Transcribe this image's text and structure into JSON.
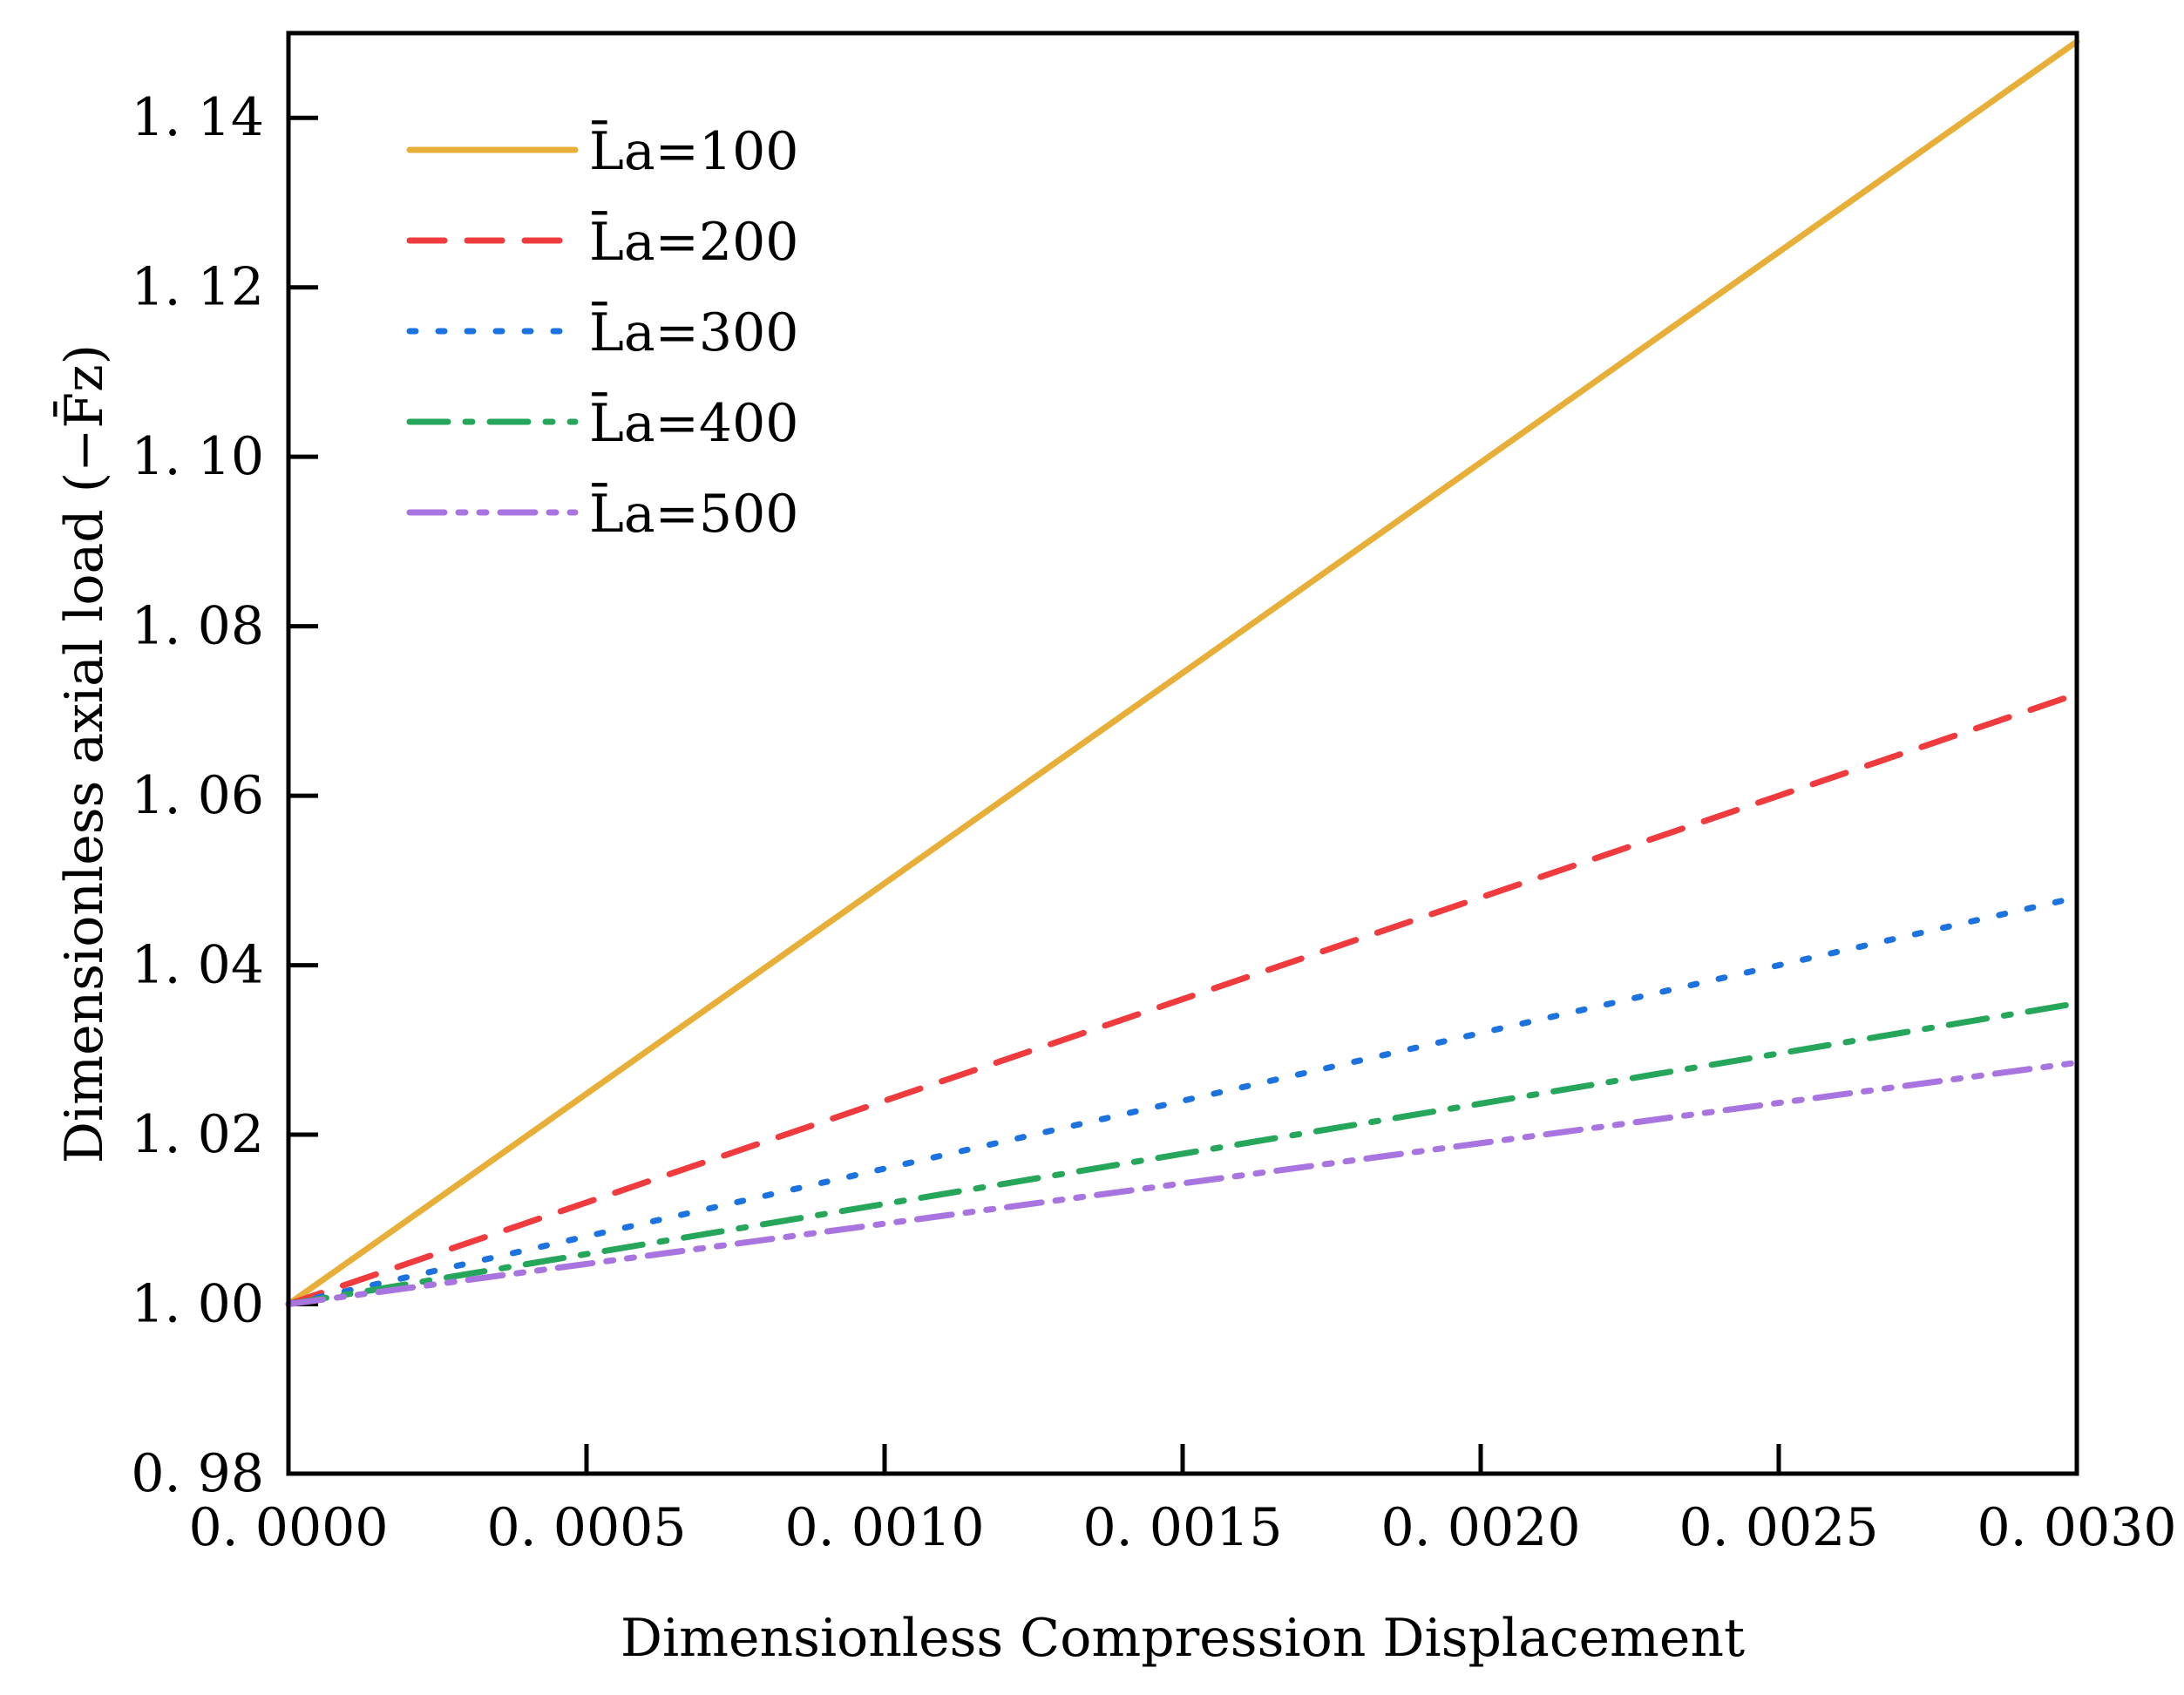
{
  "chart_data": {
    "type": "line",
    "title": "",
    "xlabel": "Dimensionless Compression Displacement",
    "ylabel": "Dimensionless axial load (−F̄z)",
    "xlim": [
      0,
      0.003
    ],
    "ylim": [
      0.98,
      1.15
    ],
    "x_ticks": [
      0,
      0.0005,
      0.001,
      0.0015,
      0.002,
      0.0025,
      0.003
    ],
    "x_tick_labels": [
      "0. 0000",
      "0. 0005",
      "0. 0010",
      "0. 0015",
      "0. 0020",
      "0. 0025",
      "0. 0030"
    ],
    "y_ticks": [
      0.98,
      1.0,
      1.02,
      1.04,
      1.06,
      1.08,
      1.1,
      1.12,
      1.14
    ],
    "y_tick_labels": [
      "0. 98",
      "1. 00",
      "1. 02",
      "1. 04",
      "1. 06",
      "1. 08",
      "1. 10",
      "1. 12",
      "1. 14"
    ],
    "legend_position": "top-left",
    "series": [
      {
        "name": "L̄a=100",
        "legend_sym": "L̄a",
        "legend_val": "=100",
        "color": "#E7AF38",
        "dash": "solid",
        "x": [
          0,
          0.003
        ],
        "values": [
          1.0,
          1.149
        ]
      },
      {
        "name": "L̄a=200",
        "legend_sym": "L̄a",
        "legend_val": "=200",
        "color": "#EF3B3E",
        "dash": "dashed",
        "x": [
          0,
          0.003
        ],
        "values": [
          1.0,
          1.072
        ]
      },
      {
        "name": "L̄a=300",
        "legend_sym": "L̄a",
        "legend_val": "=300",
        "color": "#1C73E0",
        "dash": "dotted",
        "x": [
          0,
          0.003
        ],
        "values": [
          1.0,
          1.048
        ]
      },
      {
        "name": "L̄a=400",
        "legend_sym": "L̄a",
        "legend_val": "=400",
        "color": "#26A65B",
        "dash": "dashdot",
        "x": [
          0,
          0.003
        ],
        "values": [
          1.0,
          1.0355
        ]
      },
      {
        "name": "L̄a=500",
        "legend_sym": "L̄a",
        "legend_val": "=500",
        "color": "#A874E0",
        "dash": "dashdotdot",
        "x": [
          0,
          0.003
        ],
        "values": [
          1.0,
          1.0285
        ]
      }
    ]
  }
}
